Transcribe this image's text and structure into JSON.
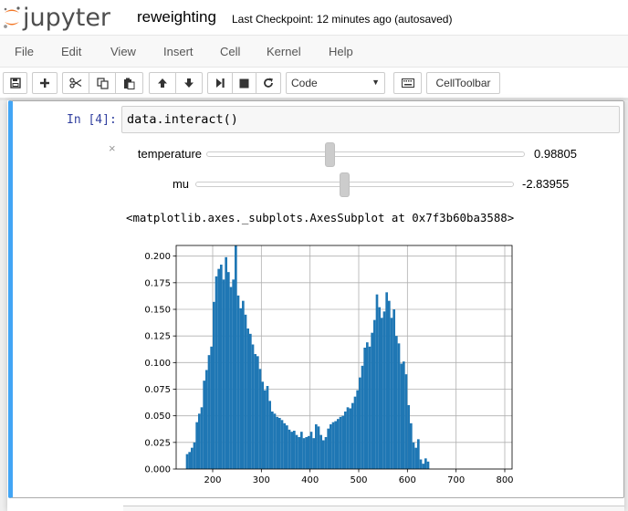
{
  "header": {
    "logo_text": "jupyter",
    "notebook_name": "reweighting",
    "checkpoint": "Last Checkpoint: 12 minutes ago (autosaved)"
  },
  "menu": [
    "File",
    "Edit",
    "View",
    "Insert",
    "Cell",
    "Kernel",
    "Help"
  ],
  "toolbar": {
    "icons": [
      "save-icon",
      "plus-icon",
      "cut-icon",
      "copy-icon",
      "paste-icon",
      "arrow-up-icon",
      "arrow-down-icon",
      "step-forward-icon",
      "stop-icon",
      "refresh-icon",
      "keyboard-icon"
    ],
    "cell_type": "Code",
    "celltoolbar_label": "CellToolbar"
  },
  "cell": {
    "prompt": "In [4]:",
    "code": "data.interact()",
    "close_symbol": "×",
    "widgets": [
      {
        "label": "temperature",
        "value_text": "0.98805",
        "fraction": 0.39
      },
      {
        "label": "mu",
        "value_text": "-2.83955",
        "fraction": 0.47
      }
    ],
    "output_repr": "<matplotlib.axes._subplots.AxesSubplot at 0x7f3b60ba3588>"
  },
  "chart_data": {
    "type": "bar",
    "title": "",
    "xlabel": "",
    "ylabel": "",
    "xlim": [
      125,
      815
    ],
    "ylim": [
      0,
      0.21
    ],
    "grid": true,
    "color": "#1f77b4",
    "xticks": [
      200,
      300,
      400,
      500,
      600,
      700,
      800
    ],
    "yticks": [
      0.0,
      0.025,
      0.05,
      0.075,
      0.1,
      0.125,
      0.15,
      0.175,
      0.2
    ],
    "ytick_labels": [
      "0.000",
      "0.025",
      "0.050",
      "0.075",
      "0.100",
      "0.125",
      "0.150",
      "0.175",
      "0.200"
    ],
    "bins": {
      "start": 145,
      "width": 5
    },
    "values": [
      0.014,
      0.016,
      0.02,
      0.025,
      0.044,
      0.052,
      0.058,
      0.083,
      0.093,
      0.107,
      0.115,
      0.157,
      0.181,
      0.188,
      0.192,
      0.178,
      0.199,
      0.185,
      0.171,
      0.178,
      0.21,
      0.163,
      0.151,
      0.158,
      0.145,
      0.132,
      0.127,
      0.117,
      0.108,
      0.106,
      0.094,
      0.082,
      0.074,
      0.078,
      0.064,
      0.054,
      0.052,
      0.049,
      0.048,
      0.046,
      0.043,
      0.041,
      0.037,
      0.035,
      0.036,
      0.032,
      0.03,
      0.035,
      0.029,
      0.03,
      0.031,
      0.035,
      0.029,
      0.042,
      0.04,
      0.032,
      0.027,
      0.03,
      0.038,
      0.042,
      0.044,
      0.045,
      0.047,
      0.049,
      0.05,
      0.054,
      0.058,
      0.057,
      0.062,
      0.068,
      0.074,
      0.086,
      0.097,
      0.114,
      0.119,
      0.115,
      0.128,
      0.14,
      0.164,
      0.152,
      0.142,
      0.148,
      0.166,
      0.158,
      0.142,
      0.15,
      0.125,
      0.118,
      0.099,
      0.101,
      0.089,
      0.06,
      0.043,
      0.025,
      0.02,
      0.028,
      0.009,
      0.005,
      0.01,
      0.007
    ]
  }
}
